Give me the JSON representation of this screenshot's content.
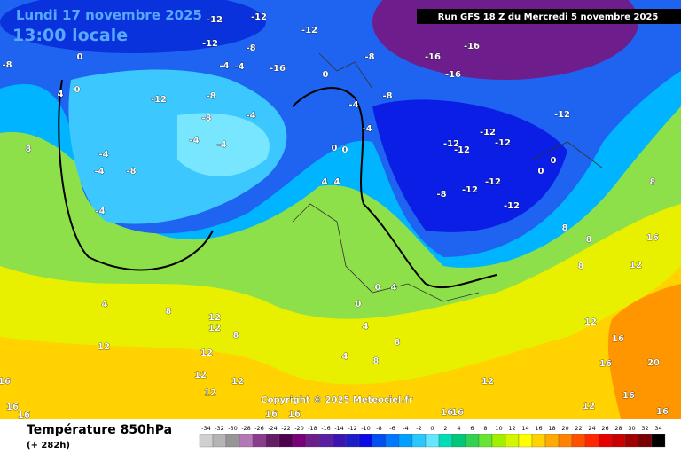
{
  "header": {
    "date": "Lundi 17 novembre 2025",
    "time": "13:00 locale",
    "run": "Run GFS 18 Z du Mercredi 5 novembre 2025",
    "copyright": "Copyright © 2025 Meteociel.fr"
  },
  "footer": {
    "title": "Température 850hPa",
    "lead": "(+ 282h)"
  },
  "contour_labels": [
    -12,
    -12,
    -12,
    -12,
    -8,
    -8,
    0,
    -4,
    -4,
    -16,
    0,
    -8,
    -16,
    -16,
    -16,
    -12,
    -8,
    0,
    4,
    -8,
    -4,
    -8,
    -4,
    -12,
    -4,
    -12,
    -12,
    -12,
    -12,
    -4,
    -4,
    -8,
    -4,
    -4,
    8,
    0,
    0,
    0,
    0,
    -12,
    -12,
    -8,
    -12,
    -4,
    4,
    4,
    8,
    8,
    8,
    16,
    12,
    8,
    4,
    8,
    12,
    12,
    8,
    12,
    12,
    12,
    12,
    12,
    16,
    16,
    16,
    16,
    16,
    16,
    16,
    4,
    4,
    8,
    8,
    12,
    16,
    16,
    20,
    16,
    16,
    12,
    12,
    0,
    0,
    4
  ],
  "scale": {
    "values": [
      -34,
      -32,
      -30,
      -28,
      -26,
      -24,
      -22,
      -20,
      -18,
      -16,
      -14,
      -12,
      -10,
      -8,
      -6,
      -4,
      -2,
      0,
      2,
      4,
      6,
      8,
      10,
      12,
      14,
      16,
      18,
      20,
      22,
      24,
      26,
      28,
      30,
      32,
      34
    ],
    "colors": [
      "#d0d0d0",
      "#b4b4b4",
      "#969696",
      "#b478b4",
      "#8c3c8c",
      "#641e64",
      "#500050",
      "#780078",
      "#6e1e8c",
      "#5a1ea0",
      "#3c14b4",
      "#1e1ec8",
      "#0a0ae6",
      "#0050f0",
      "#0078ff",
      "#00a0ff",
      "#28c8ff",
      "#64e6ff",
      "#00dcb4",
      "#00c878",
      "#32d250",
      "#64e632",
      "#a0f000",
      "#d2f500",
      "#ffff00",
      "#ffd200",
      "#ffaa00",
      "#ff8200",
      "#ff5000",
      "#ff2800",
      "#e60000",
      "#c80000",
      "#a00000",
      "#780000",
      "#000000"
    ]
  }
}
